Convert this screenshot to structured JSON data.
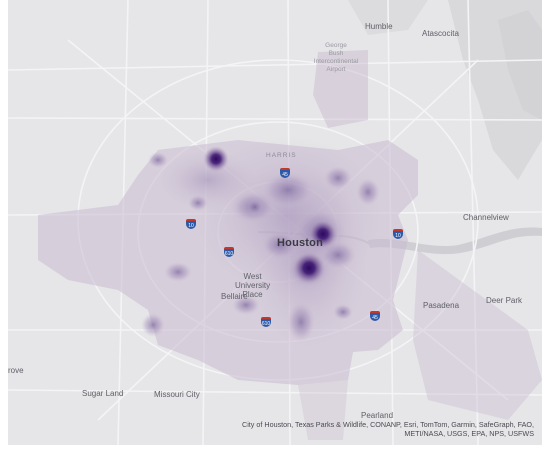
{
  "map": {
    "style": "light-gray-canvas",
    "palette": {
      "canvas": "#e6e6e8",
      "water": "#d3d3d6",
      "roads": "#ffffff",
      "region_fill": "#c8b9cf",
      "density_low": "#b9a7c8",
      "density_high": "#2e0a5e"
    },
    "places": {
      "humble": "Humble",
      "atascocita": "Atascocita",
      "airport": "George\nBush\nIntercontinental\nAirport",
      "harris": "HARRIS",
      "houston": "Houston",
      "channelview": "Channelview",
      "west_university": "West\nUniversity\nPlace",
      "bellaire": "Bellaire",
      "pasadena": "Pasadena",
      "deer_park": "Deer Park",
      "sugar_land": "Sugar Land",
      "missouri_city": "Missouri City",
      "pearland": "Pearland",
      "rove": "rove"
    },
    "highway_shields": [
      "45",
      "10",
      "610",
      "10",
      "610",
      "45"
    ],
    "attribution": "City of Houston, Texas Parks & Wildlife, CONANP, Esri, TomTom, Garmin, SafeGraph, FAO, METI/NASA, USGS, EPA, NPS, USFWS"
  }
}
